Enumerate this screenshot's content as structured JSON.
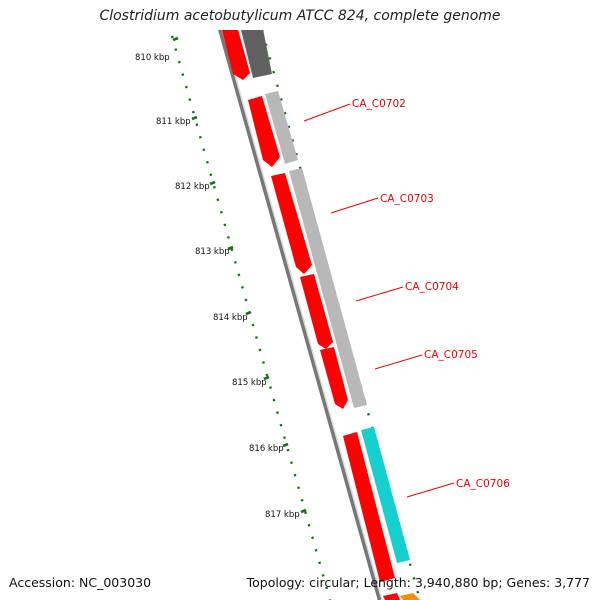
{
  "header": {
    "title": "Clostridium acetobutylicum ATCC 824, complete genome"
  },
  "footer": {
    "accession": "Accession: NC_003030",
    "summary": "Topology: circular; Length: 3,940,880 bp; Genes: 3,777"
  },
  "scale": {
    "unit": "kbp",
    "ticks": [
      {
        "label": "810 kbp"
      },
      {
        "label": "811 kbp"
      },
      {
        "label": "812 kbp"
      },
      {
        "label": "813 kbp"
      },
      {
        "label": "814 kbp"
      },
      {
        "label": "815 kbp"
      },
      {
        "label": "816 kbp"
      },
      {
        "label": "817 kbp"
      }
    ]
  },
  "genes": [
    {
      "label": "CA_C0702"
    },
    {
      "label": "CA_C0703"
    },
    {
      "label": "CA_C0704"
    },
    {
      "label": "CA_C0705"
    },
    {
      "label": "CA_C0706"
    }
  ],
  "colors": {
    "cds_forward": "#ff0000",
    "cog_gray": "#b8b8b8",
    "cog_dark": "#606060",
    "cog_cyan": "#16cfcf",
    "cog_orange": "#ff8c00",
    "backbone": "#777777",
    "scale_green": "#117711",
    "label_red": "#ee0000"
  }
}
